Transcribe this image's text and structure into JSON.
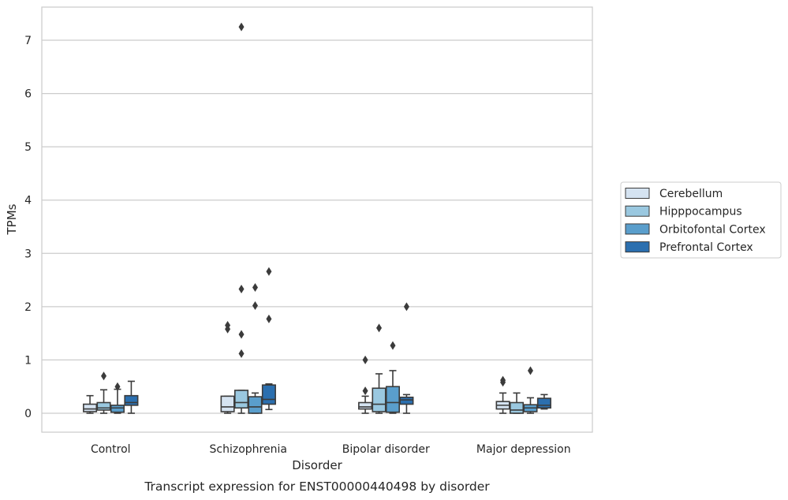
{
  "caption": "Transcript expression for ENST00000440498 by disorder",
  "chart_data": {
    "type": "box",
    "xlabel": "Disorder",
    "ylabel": "TPMs",
    "ylim": [
      -0.35,
      7.6
    ],
    "yticks": [
      0,
      1,
      2,
      3,
      4,
      5,
      6,
      7
    ],
    "grid": "horizontal",
    "legend_placement": "right",
    "categories": [
      "Control",
      "Schizophrenia",
      "Bipolar disorder",
      "Major depression"
    ],
    "series": [
      {
        "name": "Cerebellum",
        "color": "#d5e3f1",
        "boxes": [
          {
            "whislo": 0.0,
            "q1": 0.03,
            "med": 0.08,
            "q3": 0.17,
            "whishi": 0.33,
            "fliers": []
          },
          {
            "whislo": 0.0,
            "q1": 0.03,
            "med": 0.12,
            "q3": 0.32,
            "whishi": 0.32,
            "fliers": [
              1.65,
              1.58
            ]
          },
          {
            "whislo": 0.0,
            "q1": 0.08,
            "med": 0.12,
            "q3": 0.2,
            "whishi": 0.32,
            "fliers": [
              0.42,
              1.0
            ]
          },
          {
            "whislo": 0.0,
            "q1": 0.08,
            "med": 0.15,
            "q3": 0.22,
            "whishi": 0.38,
            "fliers": [
              0.58,
              0.62
            ]
          }
        ]
      },
      {
        "name": "Hipppocampus",
        "color": "#9ac8e0",
        "boxes": [
          {
            "whislo": 0.0,
            "q1": 0.06,
            "med": 0.1,
            "q3": 0.2,
            "whishi": 0.44,
            "fliers": [
              0.7
            ]
          },
          {
            "whislo": 0.0,
            "q1": 0.1,
            "med": 0.2,
            "q3": 0.43,
            "whishi": 0.43,
            "fliers": [
              1.12,
              1.48,
              2.33,
              7.25
            ]
          },
          {
            "whislo": 0.0,
            "q1": 0.03,
            "med": 0.17,
            "q3": 0.47,
            "whishi": 0.74,
            "fliers": [
              1.6
            ]
          },
          {
            "whislo": 0.0,
            "q1": 0.0,
            "med": 0.06,
            "q3": 0.2,
            "whishi": 0.38,
            "fliers": []
          }
        ]
      },
      {
        "name": "Orbitofontal Cortex",
        "color": "#5a9ecc",
        "boxes": [
          {
            "whislo": 0.0,
            "q1": 0.02,
            "med": 0.1,
            "q3": 0.15,
            "whishi": 0.45,
            "fliers": [
              0.5
            ]
          },
          {
            "whislo": 0.0,
            "q1": 0.0,
            "med": 0.12,
            "q3": 0.31,
            "whishi": 0.38,
            "fliers": [
              2.02,
              2.36
            ]
          },
          {
            "whislo": 0.0,
            "q1": 0.02,
            "med": 0.2,
            "q3": 0.5,
            "whishi": 0.8,
            "fliers": [
              1.27
            ]
          },
          {
            "whislo": 0.0,
            "q1": 0.03,
            "med": 0.1,
            "q3": 0.16,
            "whishi": 0.29,
            "fliers": [
              0.8
            ]
          }
        ]
      },
      {
        "name": "Prefrontal Cortex",
        "color": "#2b6faf",
        "boxes": [
          {
            "whislo": 0.0,
            "q1": 0.15,
            "med": 0.2,
            "q3": 0.33,
            "whishi": 0.6,
            "fliers": []
          },
          {
            "whislo": 0.07,
            "q1": 0.17,
            "med": 0.26,
            "q3": 0.53,
            "whishi": 0.55,
            "fliers": [
              1.77,
              2.66
            ]
          },
          {
            "whislo": 0.0,
            "q1": 0.17,
            "med": 0.25,
            "q3": 0.3,
            "whishi": 0.35,
            "fliers": [
              2.0
            ]
          },
          {
            "whislo": 0.08,
            "q1": 0.1,
            "med": 0.15,
            "q3": 0.28,
            "whishi": 0.35,
            "fliers": []
          }
        ]
      }
    ]
  }
}
